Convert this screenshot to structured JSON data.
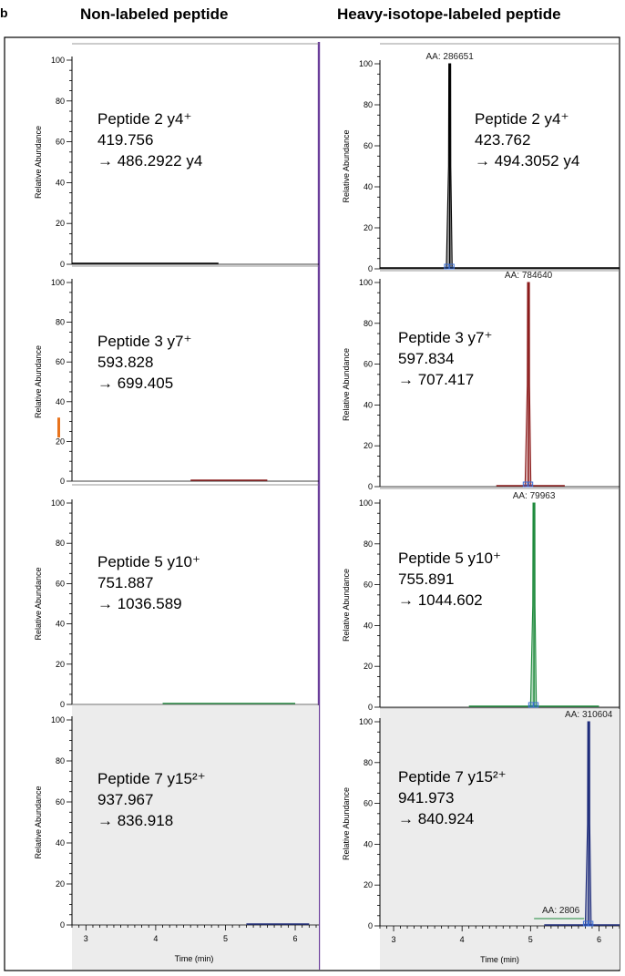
{
  "headers": {
    "left": "Non-labeled peptide",
    "right": "Heavy-isotope-labeled peptide",
    "panel_letter": "b"
  },
  "colors": {
    "divider": "#6a3d9a",
    "black": "#000000",
    "red": "#8b1a1a",
    "green": "#1e8a3c",
    "blue": "#1c2a7a",
    "orange": "#e8731c",
    "shade": "#ececec",
    "box": "#3b6fd6"
  },
  "chart_data": [
    {
      "type": "line",
      "column": "left",
      "row": 0,
      "ylabel": "Relative Abundance",
      "ylim": [
        0,
        100
      ],
      "xlim": [
        2.8,
        6.3
      ],
      "yticks": [
        "0",
        "20",
        "40",
        "60",
        "80",
        "100"
      ],
      "xticks": [],
      "xlabel": "",
      "annotation": [
        "Peptide 2 y4⁺",
        "419.756",
        "→ 486.2922 y4"
      ],
      "color": "black",
      "peak": null,
      "aa_label": "",
      "baseline": [
        2.8,
        4.9
      ]
    },
    {
      "type": "line",
      "column": "right",
      "row": 0,
      "ylabel": "Relative Abundance",
      "ylim": [
        0,
        100
      ],
      "xlim": [
        2.8,
        6.3
      ],
      "yticks": [
        "0",
        "20",
        "40",
        "60",
        "80",
        "100"
      ],
      "xticks": [],
      "xlabel": "",
      "annotation": [
        "Peptide 2 y4⁺",
        "423.762",
        "→ 494.3052 y4"
      ],
      "color": "black",
      "peak": {
        "x": 3.82,
        "y": 100,
        "width": 0.05
      },
      "aa_label": "AA: 286651",
      "baseline": [
        2.8,
        6.3
      ]
    },
    {
      "type": "line",
      "column": "left",
      "row": 1,
      "ylabel": "Relative Abundance",
      "ylim": [
        0,
        100
      ],
      "xlim": [
        2.8,
        6.3
      ],
      "yticks": [
        "0",
        "20",
        "40",
        "60",
        "80",
        "100"
      ],
      "xticks": [],
      "xlabel": "",
      "annotation": [
        "Peptide 3 y7⁺",
        "593.828",
        "→ 699.405"
      ],
      "color": "red",
      "peak": null,
      "aa_label": "",
      "baseline": [
        4.5,
        5.6
      ],
      "marker": {
        "y0": 22,
        "y1": 32
      }
    },
    {
      "type": "line",
      "column": "right",
      "row": 1,
      "ylabel": "Relative Abundance",
      "ylim": [
        0,
        100
      ],
      "xlim": [
        2.8,
        6.3
      ],
      "yticks": [
        "0",
        "20",
        "40",
        "60",
        "80",
        "100"
      ],
      "xticks": [],
      "xlabel": "",
      "annotation": [
        "Peptide 3 y7⁺",
        "597.834",
        "→ 707.417"
      ],
      "color": "red",
      "peak": {
        "x": 4.97,
        "y": 100,
        "width": 0.05
      },
      "aa_label": "AA: 784640",
      "baseline": [
        4.5,
        5.5
      ]
    },
    {
      "type": "line",
      "column": "left",
      "row": 2,
      "ylabel": "Relative Abundance",
      "ylim": [
        0,
        100
      ],
      "xlim": [
        2.8,
        6.3
      ],
      "yticks": [
        "0",
        "20",
        "40",
        "60",
        "80",
        "100"
      ],
      "xticks": [],
      "xlabel": "",
      "annotation": [
        "Peptide 5 y10⁺",
        "751.887",
        "→ 1036.589"
      ],
      "color": "green",
      "peak": null,
      "aa_label": "",
      "baseline": [
        4.1,
        6.0
      ]
    },
    {
      "type": "line",
      "column": "right",
      "row": 2,
      "ylabel": "Relative Abundance",
      "ylim": [
        0,
        100
      ],
      "xlim": [
        2.8,
        6.3
      ],
      "yticks": [
        "0",
        "20",
        "40",
        "60",
        "80",
        "100"
      ],
      "xticks": [],
      "xlabel": "",
      "annotation": [
        "Peptide 5 y10⁺",
        "755.891",
        "→ 1044.602"
      ],
      "color": "green",
      "peak": {
        "x": 5.05,
        "y": 100,
        "width": 0.05
      },
      "aa_label": "AA: 79963",
      "baseline": [
        4.1,
        6.0
      ]
    },
    {
      "type": "line",
      "column": "left",
      "row": 3,
      "ylabel": "Relative Abundance",
      "ylim": [
        0,
        100
      ],
      "xlim": [
        2.8,
        6.3
      ],
      "yticks": [
        "0",
        "20",
        "40",
        "60",
        "80",
        "100"
      ],
      "xticks": [
        "3",
        "4",
        "5",
        "6"
      ],
      "xlabel": "Time (min)",
      "annotation": [
        "Peptide 7 y15²⁺",
        "937.967",
        "→ 836.918"
      ],
      "color": "blue",
      "peak": null,
      "aa_label": "",
      "baseline": [
        5.3,
        6.2
      ],
      "shaded": true
    },
    {
      "type": "line",
      "column": "right",
      "row": 3,
      "ylabel": "Relative Abundance",
      "ylim": [
        0,
        100
      ],
      "xlim": [
        2.8,
        6.3
      ],
      "yticks": [
        "0",
        "20",
        "40",
        "60",
        "80",
        "100"
      ],
      "xticks": [
        "3",
        "4",
        "5",
        "6"
      ],
      "xlabel": "Time (min)",
      "annotation": [
        "Peptide 7 y15²⁺",
        "941.973",
        "→ 840.924"
      ],
      "color": "blue",
      "peak": {
        "x": 5.85,
        "y": 100,
        "width": 0.05
      },
      "aa_label": "AA: 310604",
      "aa_label2": "AA: 2806",
      "baseline": [
        5.2,
        6.3
      ],
      "shaded": true
    }
  ]
}
